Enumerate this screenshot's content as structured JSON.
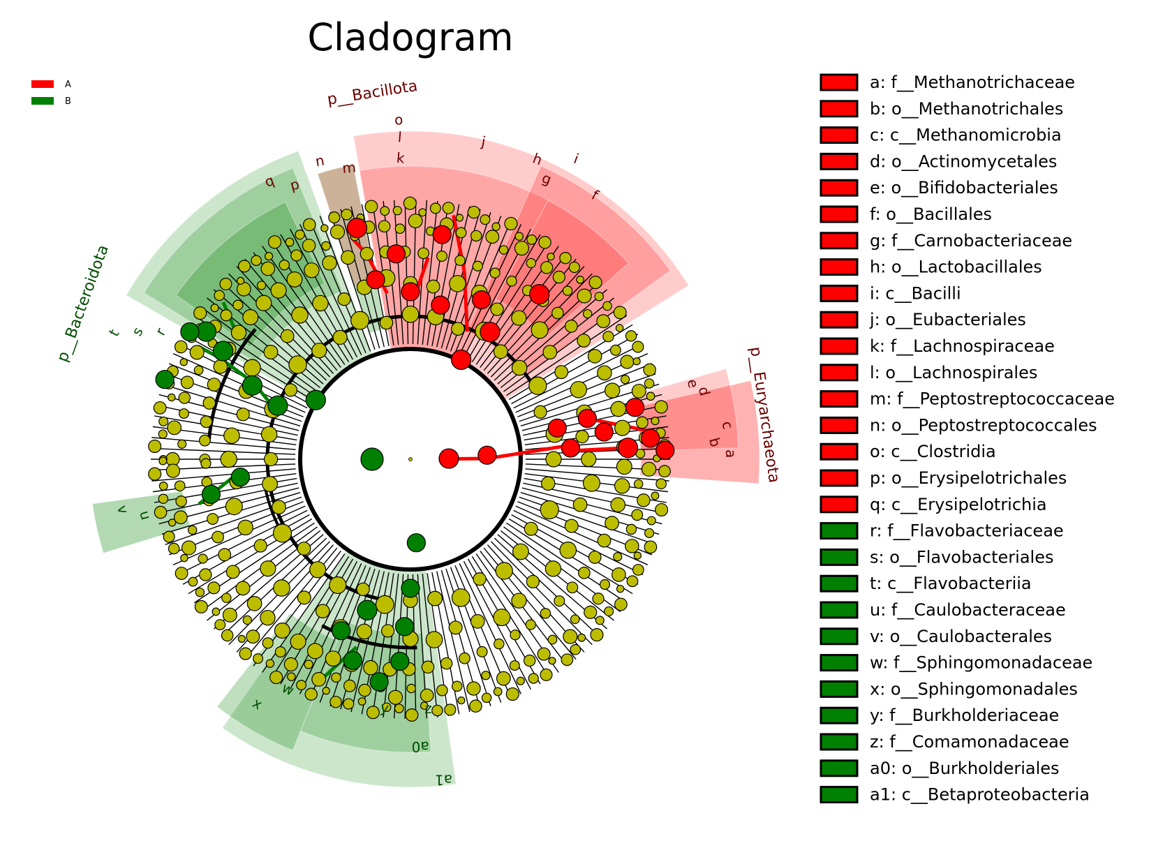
{
  "title": "Cladogram",
  "colors": {
    "A": "#ff0000",
    "B": "#008000",
    "node_default": "#bdbd00",
    "edge": "#000000",
    "label_A": "#6b0000",
    "label_B": "#004d00"
  },
  "group_legend": [
    {
      "id": "A",
      "label": "A"
    },
    {
      "id": "B",
      "label": "B"
    }
  ],
  "biomarkers": [
    {
      "key": "a",
      "label": "a: f__Methanotrichaceae",
      "group": "A"
    },
    {
      "key": "b",
      "label": "b: o__Methanotrichales",
      "group": "A"
    },
    {
      "key": "c",
      "label": "c: c__Methanomicrobia",
      "group": "A"
    },
    {
      "key": "d",
      "label": "d: o__Actinomycetales",
      "group": "A"
    },
    {
      "key": "e",
      "label": "e: o__Bifidobacteriales",
      "group": "A"
    },
    {
      "key": "f",
      "label": "f: o__Bacillales",
      "group": "A"
    },
    {
      "key": "g",
      "label": "g: f__Carnobacteriaceae",
      "group": "A"
    },
    {
      "key": "h",
      "label": "h: o__Lactobacillales",
      "group": "A"
    },
    {
      "key": "i",
      "label": "i: c__Bacilli",
      "group": "A"
    },
    {
      "key": "j",
      "label": "j: o__Eubacteriales",
      "group": "A"
    },
    {
      "key": "k",
      "label": "k: f__Lachnospiraceae",
      "group": "A"
    },
    {
      "key": "l",
      "label": "l: o__Lachnospirales",
      "group": "A"
    },
    {
      "key": "m",
      "label": "m: f__Peptostreptococcaceae",
      "group": "A"
    },
    {
      "key": "n",
      "label": "n: o__Peptostreptococcales",
      "group": "A"
    },
    {
      "key": "o",
      "label": "o: c__Clostridia",
      "group": "A"
    },
    {
      "key": "p",
      "label": "p: o__Erysipelotrichales",
      "group": "A"
    },
    {
      "key": "q",
      "label": "q: c__Erysipelotrichia",
      "group": "A"
    },
    {
      "key": "r",
      "label": "r: f__Flavobacteriaceae",
      "group": "B"
    },
    {
      "key": "s",
      "label": "s: o__Flavobacteriales",
      "group": "B"
    },
    {
      "key": "t",
      "label": "t: c__Flavobacteriia",
      "group": "B"
    },
    {
      "key": "u",
      "label": "u: f__Caulobacteraceae",
      "group": "B"
    },
    {
      "key": "v",
      "label": "v: o__Caulobacterales",
      "group": "B"
    },
    {
      "key": "w",
      "label": "w: f__Sphingomonadaceae",
      "group": "B"
    },
    {
      "key": "x",
      "label": "x: o__Sphingomonadales",
      "group": "B"
    },
    {
      "key": "y",
      "label": "y: f__Burkholderiaceae",
      "group": "B"
    },
    {
      "key": "z",
      "label": "z: f__Comamonadaceae",
      "group": "B"
    },
    {
      "key": "a0",
      "label": "a0: o__Burkholderiales",
      "group": "B"
    },
    {
      "key": "a1",
      "label": "a1: c__Betaproteobacteria",
      "group": "B"
    }
  ],
  "phyla": [
    {
      "name": "p__Bacillota",
      "group": "A"
    },
    {
      "name": "p__Bacteroidota",
      "group": "B"
    },
    {
      "name": "p__Euryarchaeota",
      "group": "A"
    }
  ]
}
